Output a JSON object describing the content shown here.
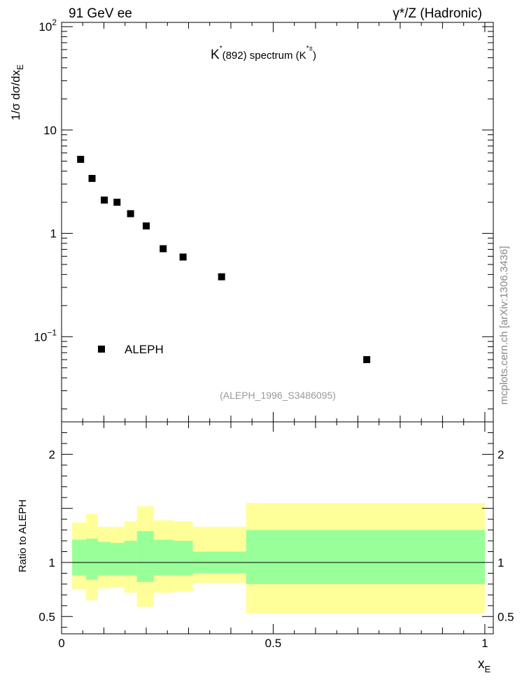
{
  "header": {
    "left": "91 GeV ee",
    "right": "γ*/Z (Hadronic)"
  },
  "side_label": "mcplots.cern.ch [arXiv:1306.3436]",
  "chart_data": [
    {
      "type": "scatter",
      "title_parts": {
        "base": "K",
        "sup": "*",
        "mid": "(892) spectrum (K",
        "sup2": "*±",
        "end": ")"
      },
      "ylabel": "1/σ dσ/dx",
      "ylabel_sub": "E",
      "yscale": "log",
      "ylim": [
        0.015,
        110
      ],
      "xlim": [
        0,
        1.02
      ],
      "yticks": [
        {
          "v": 100,
          "base": "10",
          "exp": "2"
        },
        {
          "v": 10,
          "base": "10",
          "exp": ""
        },
        {
          "v": 1,
          "base": "1",
          "exp": ""
        },
        {
          "v": 0.1,
          "base": "10",
          "exp": "−1"
        }
      ],
      "legend": {
        "label": "ALEPH",
        "placement": "lower-left"
      },
      "reference": "(ALEPH_1996_S3486095)",
      "series": [
        {
          "name": "ALEPH",
          "x": [
            0.045,
            0.072,
            0.101,
            0.131,
            0.163,
            0.2,
            0.24,
            0.287,
            0.378,
            0.721
          ],
          "y": [
            5.2,
            3.4,
            2.1,
            2.0,
            1.55,
            1.18,
            0.71,
            0.59,
            0.38,
            0.06
          ]
        }
      ]
    },
    {
      "type": "area",
      "ylabel": "Ratio to ALEPH",
      "xlabel": "x",
      "xlabel_sub": "E",
      "ylim": [
        0.34,
        2.3
      ],
      "xlim": [
        0,
        1.02
      ],
      "xticks": [
        {
          "v": 0,
          "label": "0"
        },
        {
          "v": 0.5,
          "label": "0.5"
        },
        {
          "v": 1,
          "label": "1"
        }
      ],
      "yticks": [
        {
          "v": 2,
          "label": "2"
        },
        {
          "v": 1,
          "label": "1"
        },
        {
          "v": 0.5,
          "label": "0.5"
        }
      ],
      "bins": [
        {
          "x0": 0.025,
          "x1": 0.058,
          "inner": [
            0.88,
            1.21
          ],
          "outer": [
            0.75,
            1.37
          ]
        },
        {
          "x0": 0.058,
          "x1": 0.086,
          "inner": [
            0.84,
            1.22
          ],
          "outer": [
            0.65,
            1.45
          ]
        },
        {
          "x0": 0.086,
          "x1": 0.116,
          "inner": [
            0.88,
            1.19
          ],
          "outer": [
            0.76,
            1.33
          ]
        },
        {
          "x0": 0.116,
          "x1": 0.148,
          "inner": [
            0.88,
            1.18
          ],
          "outer": [
            0.77,
            1.33
          ]
        },
        {
          "x0": 0.148,
          "x1": 0.178,
          "inner": [
            0.88,
            1.2
          ],
          "outer": [
            0.72,
            1.38
          ]
        },
        {
          "x0": 0.178,
          "x1": 0.218,
          "inner": [
            0.82,
            1.29
          ],
          "outer": [
            0.59,
            1.52
          ]
        },
        {
          "x0": 0.218,
          "x1": 0.265,
          "inner": [
            0.88,
            1.21
          ],
          "outer": [
            0.72,
            1.39
          ]
        },
        {
          "x0": 0.265,
          "x1": 0.31,
          "inner": [
            0.88,
            1.2
          ],
          "outer": [
            0.73,
            1.38
          ]
        },
        {
          "x0": 0.31,
          "x1": 0.436,
          "inner": [
            0.9,
            1.1
          ],
          "outer": [
            0.81,
            1.33
          ]
        },
        {
          "x0": 0.436,
          "x1": 1.0,
          "inner": [
            0.8,
            1.3
          ],
          "outer": [
            0.53,
            1.55
          ]
        }
      ],
      "colors": {
        "inner": "#99ff99",
        "outer": "#ffff99"
      }
    }
  ]
}
